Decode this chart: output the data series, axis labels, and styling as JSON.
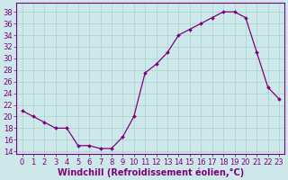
{
  "hours": [
    0,
    1,
    2,
    3,
    4,
    5,
    6,
    7,
    8,
    9,
    10,
    11,
    12,
    13,
    14,
    15,
    16,
    17,
    18,
    19,
    20,
    21,
    22,
    23
  ],
  "values": [
    21,
    20,
    19,
    18,
    18,
    15,
    15,
    14.5,
    14.5,
    16.5,
    20,
    27.5,
    29,
    31,
    34,
    35,
    36,
    37,
    38,
    38,
    37,
    31,
    25,
    23
  ],
  "line_color": "#800080",
  "marker": "D",
  "marker_size": 2.0,
  "bg_color": "#cce8e8",
  "grid_color": "#aacfcf",
  "axis_color": "#800080",
  "xlabel": "Windchill (Refroidissement éolien,°C)",
  "xlabel_fontsize": 7.0,
  "ylabel_ticks": [
    14,
    16,
    18,
    20,
    22,
    24,
    26,
    28,
    30,
    32,
    34,
    36,
    38
  ],
  "ylim": [
    13.5,
    39.5
  ],
  "xlim": [
    -0.5,
    23.5
  ],
  "tick_fontsize": 6.0,
  "tick_color": "#800080",
  "linewidth": 0.9,
  "figsize": [
    3.2,
    2.0
  ],
  "dpi": 100
}
